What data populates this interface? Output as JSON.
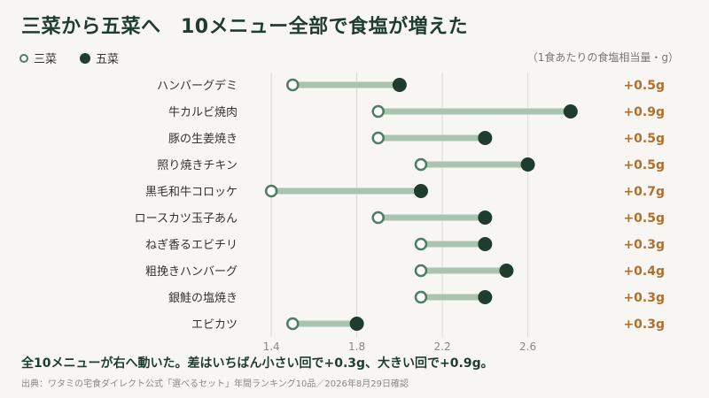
{
  "title": "三菜から五菜へ　10メニュー全部で食塩が増えた",
  "legend": {
    "open_label": "三菜",
    "filled_label": "五菜"
  },
  "unit_note": "（1食あたりの食塩相当量・g）",
  "summary": "全10メニューが右へ動いた。差はいちばん小さい回で+0.3g、大きい回で+0.9g。",
  "source": "出典：ワタミの宅食ダイレクト公式「選べるセット」年間ランキング10品／2026年8月29日確認",
  "colors": {
    "open_marker": "#4e7d62",
    "filled_marker": "#1f3d2c",
    "connector": "#a9c4b1",
    "diff_label": "#b06f2c",
    "grid": "#d9d9d6"
  },
  "chart_data": {
    "type": "dumbbell",
    "xlim": [
      1.3,
      2.95
    ],
    "x_ticks": [
      "1.4",
      "1.8",
      "2.2",
      "2.6"
    ],
    "x_tick_values": [
      1.4,
      1.8,
      2.2,
      2.6
    ],
    "series": [
      {
        "name": "三菜",
        "marker": "open"
      },
      {
        "name": "五菜",
        "marker": "filled"
      }
    ],
    "rows": [
      {
        "label": "ハンバーグデミ",
        "start": 1.5,
        "end": 2.0,
        "diff": "+0.5g"
      },
      {
        "label": "牛カルビ焼肉",
        "start": 1.9,
        "end": 2.8,
        "diff": "+0.9g"
      },
      {
        "label": "豚の生姜焼き",
        "start": 1.9,
        "end": 2.4,
        "diff": "+0.5g"
      },
      {
        "label": "照り焼きチキン",
        "start": 2.1,
        "end": 2.6,
        "diff": "+0.5g"
      },
      {
        "label": "黒毛和牛コロッケ",
        "start": 1.4,
        "end": 2.1,
        "diff": "+0.7g"
      },
      {
        "label": "ロースカツ玉子あん",
        "start": 1.9,
        "end": 2.4,
        "diff": "+0.5g"
      },
      {
        "label": "ねぎ香るエビチリ",
        "start": 2.1,
        "end": 2.4,
        "diff": "+0.3g"
      },
      {
        "label": "粗挽きハンバーグ",
        "start": 2.1,
        "end": 2.5,
        "diff": "+0.4g"
      },
      {
        "label": "銀鮭の塩焼き",
        "start": 2.1,
        "end": 2.4,
        "diff": "+0.3g"
      },
      {
        "label": "エビカツ",
        "start": 1.5,
        "end": 1.8,
        "diff": "+0.3g"
      }
    ]
  }
}
